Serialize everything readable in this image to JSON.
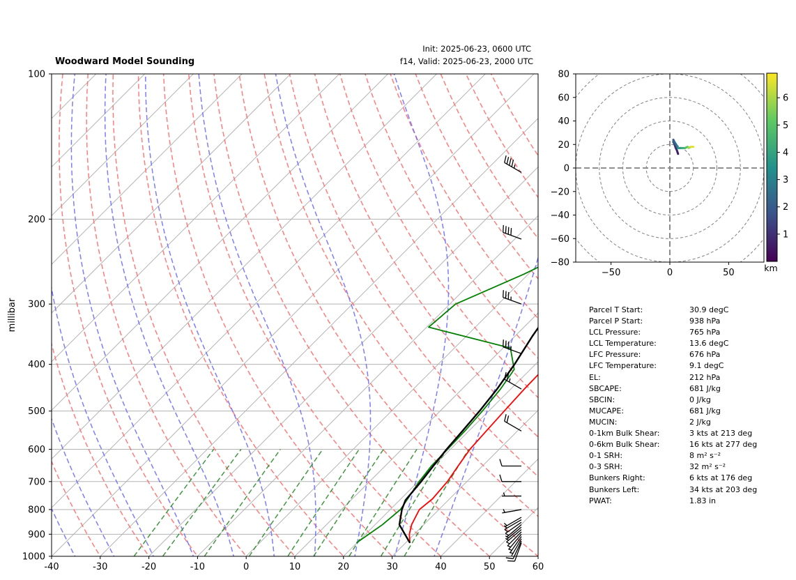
{
  "title": "Woodward Model Sounding",
  "init_text": "Init: 2025-06-23, 0600 UTC",
  "valid_text": "f14, Valid: 2025-06-23, 2000 UTC",
  "colors": {
    "temperature": "#ff0000",
    "dewpoint": "#008000",
    "parcel": "#000000",
    "dry_adiabat": "#ff6666",
    "moist_adiabat": "#6666ff",
    "mixing_ratio": "#2e8b2e",
    "isotherm": "#b3b3b3"
  },
  "chart_data": [
    {
      "type": "line",
      "subtype": "skew-t",
      "ylabel": "millibar",
      "xlabel": "",
      "x_ticks": [
        -40,
        -30,
        -20,
        -10,
        0,
        10,
        20,
        30,
        40,
        50,
        60
      ],
      "xlim": [
        -40,
        60
      ],
      "y_ticks": [
        100,
        200,
        300,
        400,
        500,
        600,
        700,
        800,
        900,
        1000
      ],
      "ylim": [
        1000,
        100
      ],
      "yscale": "log",
      "grid": true,
      "series": [
        {
          "name": "",
          "role": "temperature",
          "points": [
            [
              30.9,
              938
            ],
            [
              29,
              900
            ],
            [
              27.5,
              860
            ],
            [
              26,
              800
            ],
            [
              26.5,
              760
            ],
            [
              26,
              700
            ],
            [
              25,
              650
            ],
            [
              24,
              600
            ],
            [
              23.6,
              550
            ],
            [
              23.2,
              500
            ],
            [
              22.8,
              450
            ],
            [
              22.6,
              400
            ],
            [
              22.7,
              340
            ],
            [
              21.9,
              300
            ],
            [
              19.1,
              250
            ],
            [
              16.4,
              200
            ],
            [
              14.8,
              175
            ],
            [
              13.3,
              150
            ],
            [
              14.8,
              125
            ],
            [
              16.8,
              100
            ]
          ]
        },
        {
          "name": "",
          "role": "dewpoint",
          "points": [
            [
              19.9,
              938
            ],
            [
              21.5,
              860
            ],
            [
              22.1,
              800
            ],
            [
              21.4,
              760
            ],
            [
              20.2,
              700
            ],
            [
              19.5,
              650
            ],
            [
              19.4,
              600
            ],
            [
              19.2,
              550
            ],
            [
              18.7,
              500
            ],
            [
              17.9,
              450
            ],
            [
              16.7,
              410
            ],
            [
              11.5,
              370
            ],
            [
              -9.6,
              335
            ],
            [
              -8.8,
              300
            ],
            [
              -0.9,
              260
            ],
            [
              5.7,
              225
            ],
            [
              9.9,
              190
            ],
            [
              12.1,
              150
            ],
            [
              17.4,
              115
            ],
            [
              19.4,
              100
            ]
          ]
        },
        {
          "name": "",
          "role": "parcel",
          "points": [
            [
              30.9,
              938
            ],
            [
              25,
              860
            ],
            [
              22.4,
              800
            ],
            [
              21.2,
              765
            ],
            [
              20.6,
              700
            ],
            [
              19.9,
              650
            ],
            [
              19.2,
              600
            ],
            [
              18.7,
              550
            ],
            [
              18.1,
              500
            ],
            [
              17.2,
              450
            ],
            [
              15.7,
              400
            ],
            [
              13.6,
              350
            ],
            [
              11.6,
              300
            ],
            [
              9.5,
              250
            ],
            [
              7.8,
              210
            ],
            [
              5.9,
              175
            ],
            [
              3.9,
              150
            ],
            [
              1.5,
              125
            ],
            [
              -2.9,
              100
            ]
          ]
        }
      ],
      "wind_barbs": {
        "pressures": [
          938,
          930,
          920,
          910,
          900,
          890,
          880,
          870,
          860,
          850,
          840,
          830,
          800,
          750,
          700,
          650,
          550,
          450,
          380,
          300,
          220,
          160
        ],
        "speed_kts": [
          8,
          8,
          7,
          7,
          6,
          6,
          6,
          5,
          5,
          5,
          5,
          5,
          5,
          5,
          10,
          10,
          20,
          25,
          35,
          35,
          40,
          45
        ],
        "direction_deg": [
          200,
          205,
          210,
          215,
          220,
          225,
          230,
          230,
          230,
          235,
          240,
          240,
          260,
          270,
          270,
          270,
          300,
          300,
          290,
          290,
          290,
          300
        ]
      }
    },
    {
      "type": "line",
      "subtype": "hodograph",
      "xlim": [
        -80,
        80
      ],
      "ylim": [
        -80,
        80
      ],
      "x_ticks": [
        -50,
        0,
        50
      ],
      "y_ticks": [
        -80,
        -60,
        -40,
        -20,
        0,
        20,
        40,
        60,
        80
      ],
      "ring_spacing": 20,
      "colorbar_label": "km",
      "colorbar_ticks": [
        1,
        2,
        3,
        4,
        5,
        6
      ],
      "colorbar_range": [
        0,
        6.9
      ],
      "colorbar_colors": [
        "#440154",
        "#3b528b",
        "#21918c",
        "#5ec962",
        "#fde725"
      ],
      "points": [
        {
          "u": 7,
          "v": 12,
          "h": 0.2
        },
        {
          "u": 6,
          "v": 15,
          "h": 0.5
        },
        {
          "u": 5,
          "v": 17,
          "h": 0.8
        },
        {
          "u": 4,
          "v": 20,
          "h": 1.0
        },
        {
          "u": 3,
          "v": 22,
          "h": 1.3
        },
        {
          "u": 3,
          "v": 24,
          "h": 1.6
        },
        {
          "u": 4,
          "v": 22,
          "h": 2.0
        },
        {
          "u": 6,
          "v": 19,
          "h": 2.5
        },
        {
          "u": 7,
          "v": 17,
          "h": 3.0
        },
        {
          "u": 10,
          "v": 17,
          "h": 3.6
        },
        {
          "u": 13,
          "v": 17,
          "h": 4.2
        },
        {
          "u": 15,
          "v": 18,
          "h": 4.8
        },
        {
          "u": 16,
          "v": 17,
          "h": 5.4
        },
        {
          "u": 18,
          "v": 18,
          "h": 6.0
        },
        {
          "u": 20,
          "v": 18,
          "h": 6.6
        }
      ]
    }
  ],
  "parameters": [
    {
      "label": "Parcel T Start:",
      "value": "30.9 degC"
    },
    {
      "label": "Parcel P Start:",
      "value": "938 hPa"
    },
    {
      "label": "LCL Pressure:",
      "value": "765 hPa"
    },
    {
      "label": "LCL Temperature:",
      "value": "13.6 degC"
    },
    {
      "label": "LFC Pressure:",
      "value": "676 hPa"
    },
    {
      "label": "LFC Temperature:",
      "value": "9.1 degC"
    },
    {
      "label": "EL:",
      "value": "212 hPa"
    },
    {
      "label": "SBCAPE:",
      "value": "681 J/kg"
    },
    {
      "label": "SBCIN:",
      "value": "0 J/kg"
    },
    {
      "label": "MUCAPE:",
      "value": "681 J/kg"
    },
    {
      "label": "MUCIN:",
      "value": "2 J/kg"
    },
    {
      "label": "0-1km Bulk Shear:",
      "value": "3 kts at 213 deg"
    },
    {
      "label": "0-6km Bulk Shear:",
      "value": "16 kts at 277 deg"
    },
    {
      "label": "0-1 SRH:",
      "value": "8 m² s⁻²"
    },
    {
      "label": "0-3 SRH:",
      "value": "32 m² s⁻²"
    },
    {
      "label": "Bunkers Right:",
      "value": "6 kts at 176 deg"
    },
    {
      "label": "Bunkers Left:",
      "value": "34 kts at 203 deg"
    },
    {
      "label": "PWAT:",
      "value": "1.83 in"
    }
  ]
}
